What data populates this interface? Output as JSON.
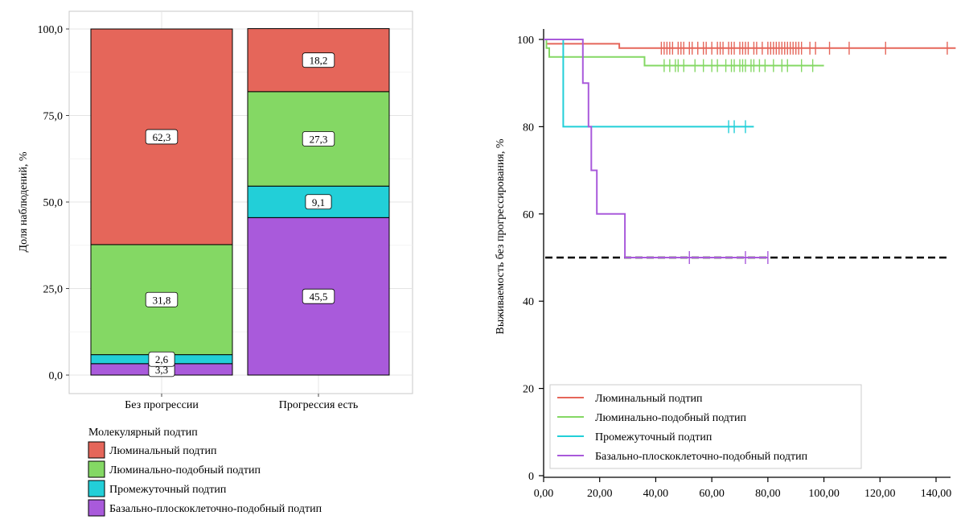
{
  "chart_data": [
    {
      "type": "bar",
      "stacked": true,
      "categories": [
        "Без прогрессии",
        "Прогрессия есть"
      ],
      "ylabel": "Доля наблюдений, %",
      "ylim": [
        0,
        100
      ],
      "yticks": [
        "0,0",
        "25,0",
        "50,0",
        "75,0",
        "100,0"
      ],
      "grid": true,
      "legend_title": "Молекулярный подтип",
      "legend_position": "bottom-left",
      "series": [
        {
          "name": "Базально-плоскоклеточно-подобный подтип",
          "values": [
            3.3,
            45.5
          ],
          "labels": [
            "3,3",
            "45,5"
          ],
          "color": "#a95adb"
        },
        {
          "name": "Промежуточный подтип",
          "values": [
            2.6,
            9.1
          ],
          "labels": [
            "2,6",
            "9,1"
          ],
          "color": "#22cfd8"
        },
        {
          "name": "Люминально-подобный подтип",
          "values": [
            31.8,
            27.3
          ],
          "labels": [
            "31,8",
            "27,3"
          ],
          "color": "#84d864"
        },
        {
          "name": "Люминальный подтип",
          "values": [
            62.3,
            18.2
          ],
          "labels": [
            "62,3",
            "18,2"
          ],
          "color": "#e5665a"
        }
      ],
      "legend_order": [
        "Люминальный подтип",
        "Люминально-подобный подтип",
        "Промежуточный подтип",
        "Базально-плоскоклеточно-подобный подтип"
      ]
    },
    {
      "type": "line",
      "step": true,
      "ylabel": "Выживаемость без прогрессирования, %",
      "xlim": [
        0,
        150
      ],
      "ylim": [
        0,
        103
      ],
      "xticks": [
        {
          "v": 0,
          "t": "0,00"
        },
        {
          "v": 20,
          "t": "20,00"
        },
        {
          "v": 40,
          "t": "40,00"
        },
        {
          "v": 60,
          "t": "60,00"
        },
        {
          "v": 80,
          "t": "80,00"
        },
        {
          "v": 100,
          "t": "100,00"
        },
        {
          "v": 120,
          "t": "120,00"
        },
        {
          "v": 140,
          "t": "140,00"
        }
      ],
      "yticks": [
        {
          "v": 0,
          "t": "0"
        },
        {
          "v": 20,
          "t": "20"
        },
        {
          "v": 40,
          "t": "40"
        },
        {
          "v": 60,
          "t": "60"
        },
        {
          "v": 80,
          "t": "80"
        },
        {
          "v": 100,
          "t": "100"
        }
      ],
      "reference_line": {
        "y": 50,
        "style": "dashed",
        "color": "#000000"
      },
      "grid": false,
      "legend_position": "bottom-left",
      "series": [
        {
          "name": "Люминальный подтип",
          "color": "#e5665a",
          "points": [
            [
              0,
              100
            ],
            [
              1,
              100
            ],
            [
              1,
              99
            ],
            [
              27,
              99
            ],
            [
              27,
              98
            ],
            [
              147,
              98
            ]
          ],
          "censored": [
            42,
            43,
            44,
            45,
            46,
            48,
            49,
            50,
            52,
            53,
            55,
            57,
            58,
            60,
            62,
            63,
            64,
            66,
            67,
            68,
            70,
            71,
            72,
            73,
            75,
            76,
            78,
            80,
            81,
            82,
            83,
            84,
            85,
            86,
            87,
            88,
            89,
            90,
            91,
            92,
            95,
            97,
            102,
            109,
            122,
            144
          ]
        },
        {
          "name": "Люминально-подобный подтип",
          "color": "#84d864",
          "points": [
            [
              0,
              100
            ],
            [
              1,
              100
            ],
            [
              1,
              98
            ],
            [
              2,
              98
            ],
            [
              2,
              96
            ],
            [
              36,
              96
            ],
            [
              36,
              94
            ],
            [
              100,
              94
            ]
          ],
          "censored": [
            43,
            45,
            47,
            48,
            50,
            54,
            57,
            60,
            62,
            65,
            67,
            68,
            70,
            71,
            72,
            74,
            75,
            77,
            79,
            82,
            85,
            87,
            92,
            96
          ]
        },
        {
          "name": "Промежуточный подтип",
          "color": "#22cfd8",
          "points": [
            [
              0,
              100
            ],
            [
              7,
              100
            ],
            [
              7,
              80
            ],
            [
              75,
              80
            ]
          ],
          "censored": [
            66,
            68,
            72
          ]
        },
        {
          "name": "Базально-плоскоклеточно-подобный подтип",
          "color": "#a95adb",
          "points": [
            [
              0,
              100
            ],
            [
              14,
              100
            ],
            [
              14,
              90
            ],
            [
              16,
              90
            ],
            [
              16,
              80
            ],
            [
              17,
              80
            ],
            [
              17,
              70
            ],
            [
              19,
              70
            ],
            [
              19,
              60
            ],
            [
              29,
              60
            ],
            [
              29,
              50
            ],
            [
              80,
              50
            ]
          ],
          "censored": [
            52,
            72,
            80
          ]
        }
      ]
    }
  ]
}
